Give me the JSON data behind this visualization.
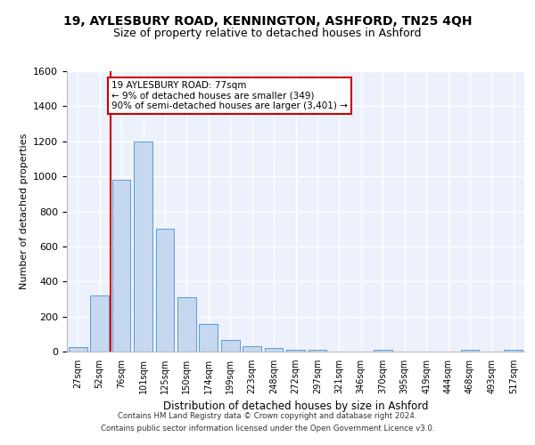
{
  "title1": "19, AYLESBURY ROAD, KENNINGTON, ASHFORD, TN25 4QH",
  "title2": "Size of property relative to detached houses in Ashford",
  "xlabel": "Distribution of detached houses by size in Ashford",
  "ylabel": "Number of detached properties",
  "categories": [
    "27sqm",
    "52sqm",
    "76sqm",
    "101sqm",
    "125sqm",
    "150sqm",
    "174sqm",
    "199sqm",
    "223sqm",
    "248sqm",
    "272sqm",
    "297sqm",
    "321sqm",
    "346sqm",
    "370sqm",
    "395sqm",
    "419sqm",
    "444sqm",
    "468sqm",
    "493sqm",
    "517sqm"
  ],
  "values": [
    25,
    320,
    980,
    1200,
    700,
    310,
    155,
    65,
    28,
    18,
    12,
    10,
    0,
    0,
    8,
    0,
    0,
    0,
    10,
    0,
    10
  ],
  "bar_color": "#c5d8f0",
  "bar_edge_color": "#5b9bd5",
  "vline_pos": 1.5,
  "vline_color": "#cc0000",
  "annotation_line1": "19 AYLESBURY ROAD: 77sqm",
  "annotation_line2": "← 9% of detached houses are smaller (349)",
  "annotation_line3": "90% of semi-detached houses are larger (3,401) →",
  "annotation_box_color": "#ffffff",
  "annotation_box_edge": "#cc0000",
  "ylim": [
    0,
    1600
  ],
  "yticks": [
    0,
    200,
    400,
    600,
    800,
    1000,
    1200,
    1400,
    1600
  ],
  "bg_color": "#edf1fb",
  "grid_color": "#ffffff",
  "footer1": "Contains HM Land Registry data © Crown copyright and database right 2024.",
  "footer2": "Contains public sector information licensed under the Open Government Licence v3.0."
}
